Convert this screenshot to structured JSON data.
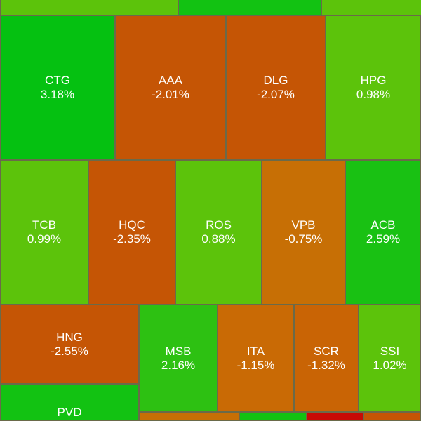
{
  "tiles": [
    {
      "symbol": "",
      "change": "",
      "color": "#5cc30b"
    },
    {
      "symbol": "",
      "change": "",
      "color": "#12c212"
    },
    {
      "symbol": "",
      "change": "",
      "color": "#5cc30b"
    },
    {
      "symbol": "CTG",
      "change": "3.18%",
      "color": "#05c111"
    },
    {
      "symbol": "AAA",
      "change": "-2.01%",
      "color": "#c55505"
    },
    {
      "symbol": "DLG",
      "change": "-2.07%",
      "color": "#c55505"
    },
    {
      "symbol": "HPG",
      "change": "0.98%",
      "color": "#5cc30b"
    },
    {
      "symbol": "TCB",
      "change": "0.99%",
      "color": "#5cc30b"
    },
    {
      "symbol": "HQC",
      "change": "-2.35%",
      "color": "#c55505"
    },
    {
      "symbol": "ROS",
      "change": "0.88%",
      "color": "#5cc30b"
    },
    {
      "symbol": "VPB",
      "change": "-0.75%",
      "color": "#c76f05"
    },
    {
      "symbol": "ACB",
      "change": "2.59%",
      "color": "#19c113"
    },
    {
      "symbol": "HNG",
      "change": "-2.55%",
      "color": "#c55505"
    },
    {
      "symbol": "MSB",
      "change": "2.16%",
      "color": "#2dc112"
    },
    {
      "symbol": "ITA",
      "change": "-1.15%",
      "color": "#c96a05"
    },
    {
      "symbol": "SCR",
      "change": "-1.32%",
      "color": "#c96405"
    },
    {
      "symbol": "SSI",
      "change": "1.02%",
      "color": "#5cc30b"
    },
    {
      "symbol": "PVD",
      "change": "",
      "color": "#12c212"
    },
    {
      "symbol": "",
      "change": "",
      "color": "#c76f05"
    },
    {
      "symbol": "",
      "change": "",
      "color": "#12c212"
    },
    {
      "symbol": "",
      "change": "",
      "color": "#c80a05"
    },
    {
      "symbol": "",
      "change": "",
      "color": "#c55505"
    }
  ]
}
